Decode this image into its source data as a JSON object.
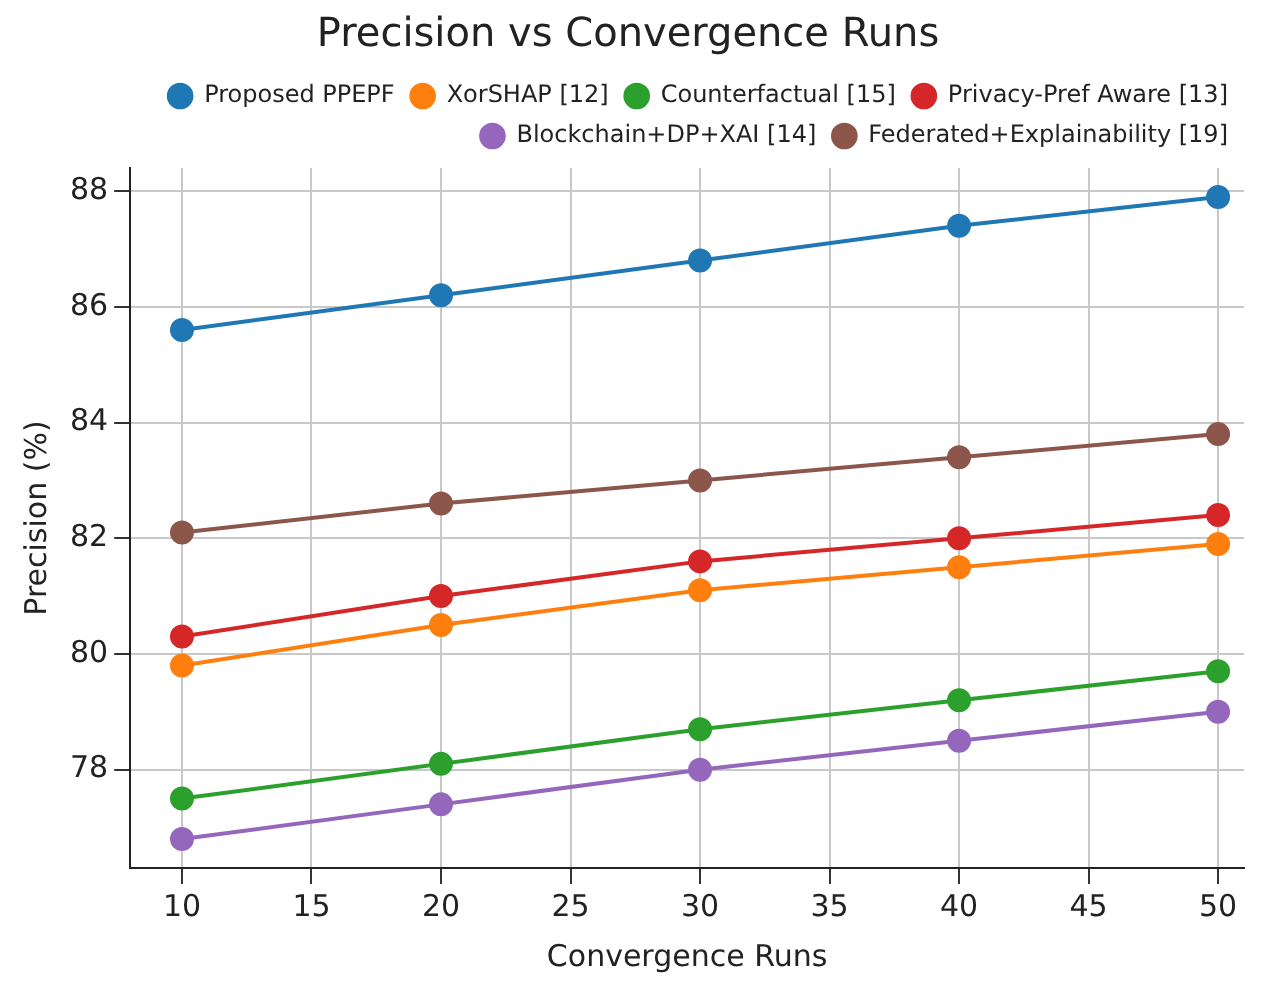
{
  "chart_data": {
    "type": "line",
    "title": "Precision vs Convergence Runs",
    "xlabel": "Convergence Runs",
    "ylabel": "Precision (%)",
    "x": [
      10,
      20,
      30,
      40,
      50
    ],
    "series": [
      {
        "name": "Proposed PPEPF",
        "color": "#1f77b4",
        "values": [
          85.6,
          86.2,
          86.8,
          87.4,
          87.9
        ]
      },
      {
        "name": "XorSHAP [12]",
        "color": "#ff7f0e",
        "values": [
          79.8,
          80.5,
          81.1,
          81.5,
          81.9
        ]
      },
      {
        "name": "Counterfactual [15]",
        "color": "#2ca02c",
        "values": [
          77.5,
          78.1,
          78.7,
          79.2,
          79.7
        ]
      },
      {
        "name": "Privacy-Pref Aware [13]",
        "color": "#d62728",
        "values": [
          80.3,
          81.0,
          81.6,
          82.0,
          82.4
        ]
      },
      {
        "name": "Blockchain+DP+XAI [14]",
        "color": "#9467bd",
        "values": [
          76.8,
          77.4,
          78.0,
          78.5,
          79.0
        ]
      },
      {
        "name": "Federated+Explainability [19]",
        "color": "#8c564b",
        "values": [
          82.1,
          82.6,
          83.0,
          83.4,
          83.8
        ]
      }
    ],
    "xlim": [
      8,
      51
    ],
    "xticks": [
      10,
      15,
      20,
      25,
      30,
      35,
      40,
      45,
      50
    ],
    "ylim": [
      76.3,
      88.4
    ],
    "yticks": [
      78,
      80,
      82,
      84,
      86,
      88
    ],
    "grid": true,
    "legend": "top right",
    "marker": "circle",
    "line_style": "solid"
  }
}
